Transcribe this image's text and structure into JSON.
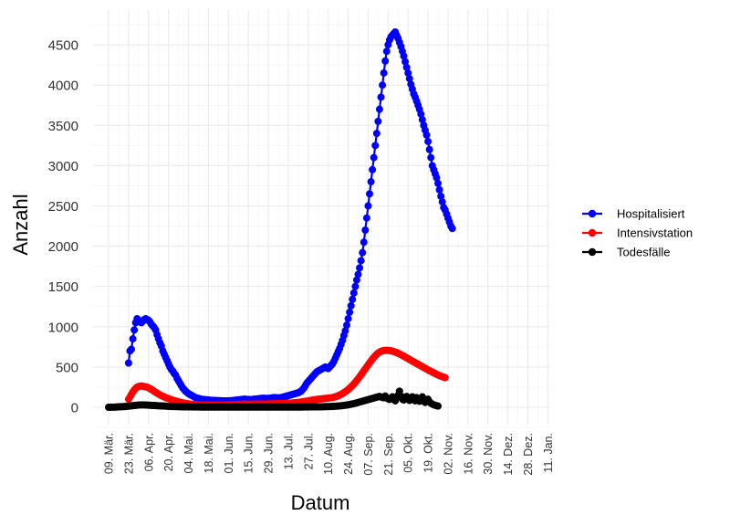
{
  "chart_data": {
    "type": "line",
    "xlabel": "Datum",
    "ylabel": "Anzahl",
    "ylim": [
      0,
      4700
    ],
    "x_tick_labels": [
      "09. Mär.",
      "23. Mär.",
      "06. Apr.",
      "20. Apr.",
      "04. Mai.",
      "18. Mai.",
      "01. Jun.",
      "15. Jun.",
      "29. Jun.",
      "13. Jul.",
      "27. Jul.",
      "10. Aug.",
      "24. Aug.",
      "07. Sep.",
      "21. Sep.",
      "05. Okt.",
      "19. Okt.",
      "02. Nov.",
      "16. Nov.",
      "30. Nov.",
      "14. Dez.",
      "28. Dez.",
      "11. Jan."
    ],
    "y_tick_labels": [
      "0",
      "500",
      "1000",
      "1500",
      "2000",
      "2500",
      "3000",
      "3500",
      "4000",
      "4500"
    ],
    "grid": true,
    "legend_position": "right",
    "series": [
      {
        "name": "Hospitalisiert",
        "color": "#0000ff",
        "start_day": 14,
        "values": [
          550,
          700,
          720,
          850,
          960,
          1050,
          1100,
          1080,
          1070,
          1050,
          1070,
          1090,
          1100,
          1090,
          1080,
          1060,
          1030,
          1010,
          990,
          960,
          900,
          850,
          800,
          760,
          700,
          660,
          620,
          580,
          540,
          500,
          470,
          450,
          420,
          400,
          360,
          330,
          300,
          270,
          240,
          220,
          200,
          185,
          170,
          160,
          150,
          140,
          130,
          120,
          115,
          110,
          105,
          100,
          98,
          96,
          94,
          92,
          90,
          88,
          87,
          86,
          85,
          84,
          83,
          82,
          82,
          81,
          81,
          80,
          80,
          80,
          80,
          81,
          82,
          84,
          86,
          88,
          90,
          92,
          94,
          96,
          98,
          100,
          100,
          98,
          96,
          95,
          96,
          98,
          100,
          102,
          104,
          106,
          108,
          110,
          112,
          112,
          111,
          110,
          110,
          112,
          115,
          118,
          120,
          120,
          118,
          116,
          118,
          120,
          125,
          130,
          135,
          140,
          145,
          150,
          155,
          160,
          165,
          170,
          175,
          180,
          190,
          200,
          220,
          240,
          270,
          300,
          320,
          340,
          360,
          380,
          400,
          420,
          440,
          450,
          460,
          470,
          480,
          490,
          500,
          490,
          480,
          500,
          520,
          540,
          570,
          610,
          650,
          690,
          730,
          780,
          830,
          890,
          950,
          1020,
          1100,
          1180,
          1260,
          1340,
          1420,
          1500,
          1580,
          1650,
          1730,
          1820,
          1920,
          2050,
          2200,
          2350,
          2500,
          2650,
          2800,
          2950,
          3100,
          3250,
          3400,
          3550,
          3700,
          3850,
          4000,
          4150,
          4300,
          4420,
          4500,
          4560,
          4600,
          4620,
          4640,
          4660,
          4620,
          4580,
          4530,
          4480,
          4420,
          4360,
          4290,
          4220,
          4150,
          4080,
          4010,
          3950,
          3890,
          3850,
          3800,
          3750,
          3700,
          3640,
          3570,
          3500,
          3440,
          3380,
          3300,
          3200,
          3100,
          3000,
          2950,
          2900,
          2850,
          2780,
          2700,
          2620,
          2550,
          2480,
          2450,
          2400,
          2350,
          2300,
          2250,
          2220
        ]
      },
      {
        "name": "Intensivstation",
        "color": "#ff0000",
        "start_day": 14,
        "values": [
          100,
          130,
          160,
          190,
          215,
          235,
          250,
          258,
          262,
          265,
          262,
          258,
          254,
          250,
          242,
          232,
          222,
          210,
          198,
          186,
          175,
          165,
          155,
          145,
          137,
          130,
          122,
          115,
          108,
          101,
          95,
          89,
          83,
          78,
          73,
          68,
          63,
          59,
          55,
          51,
          48,
          45,
          42,
          40,
          38,
          36,
          35,
          34,
          33,
          32,
          31,
          30,
          30,
          30,
          29,
          29,
          29,
          29,
          28,
          28,
          28,
          28,
          28,
          28,
          28,
          28,
          29,
          29,
          30,
          30,
          31,
          31,
          32,
          32,
          33,
          33,
          34,
          35,
          36,
          37,
          38,
          38,
          38,
          37,
          37,
          37,
          38,
          38,
          38,
          39,
          39,
          40,
          40,
          40,
          40,
          41,
          41,
          41,
          42,
          42,
          42,
          43,
          43,
          44,
          44,
          45,
          45,
          46,
          47,
          48,
          49,
          50,
          51,
          52,
          53,
          54,
          55,
          57,
          59,
          61,
          63,
          65,
          68,
          71,
          74,
          77,
          80,
          83,
          86,
          89,
          92,
          95,
          98,
          100,
          102,
          104,
          106,
          108,
          110,
          112,
          114,
          116,
          118,
          121,
          125,
          130,
          136,
          143,
          151,
          160,
          170,
          181,
          193,
          206,
          220,
          236,
          253,
          271,
          290,
          310,
          332,
          355,
          378,
          402,
          427,
          452,
          477,
          502,
          527,
          552,
          575,
          598,
          620,
          640,
          658,
          673,
          685,
          694,
          700,
          704,
          706,
          707,
          706,
          704,
          701,
          697,
          692,
          686,
          679,
          671,
          663,
          654,
          645,
          635,
          625,
          615,
          604,
          594,
          584,
          574,
          564,
          554,
          544,
          534,
          524,
          514,
          504,
          494,
          484,
          474,
          464,
          455,
          446,
          437,
          428,
          419,
          410,
          402,
          394,
          387,
          380,
          374,
          368
        ]
      },
      {
        "name": "Todesfälle",
        "color": "#000000",
        "start_day": 0,
        "values": [
          0,
          1,
          1,
          2,
          2,
          3,
          4,
          5,
          6,
          7,
          8,
          9,
          10,
          12,
          14,
          16,
          18,
          20,
          22,
          24,
          26,
          28,
          29,
          30,
          30,
          29,
          28,
          27,
          26,
          25,
          24,
          23,
          22,
          21,
          20,
          19,
          18,
          17,
          16,
          15,
          14,
          13,
          12,
          11,
          10,
          10,
          9,
          9,
          8,
          8,
          7,
          7,
          6,
          6,
          6,
          5,
          5,
          5,
          5,
          4,
          4,
          4,
          4,
          4,
          3,
          3,
          3,
          3,
          3,
          3,
          3,
          3,
          3,
          3,
          3,
          3,
          3,
          3,
          3,
          3,
          3,
          3,
          3,
          3,
          3,
          3,
          3,
          3,
          3,
          3,
          3,
          3,
          3,
          3,
          3,
          3,
          3,
          3,
          3,
          3,
          3,
          3,
          3,
          3,
          3,
          3,
          3,
          3,
          3,
          3,
          3,
          3,
          3,
          3,
          3,
          3,
          3,
          3,
          3,
          3,
          3,
          3,
          3,
          3,
          3,
          3,
          3,
          3,
          3,
          3,
          3,
          3,
          3,
          3,
          3,
          3,
          3,
          4,
          4,
          4,
          4,
          4,
          5,
          5,
          5,
          5,
          6,
          6,
          6,
          7,
          7,
          7,
          8,
          8,
          9,
          9,
          10,
          11,
          12,
          13,
          14,
          15,
          17,
          19,
          21,
          23,
          25,
          28,
          31,
          34,
          38,
          42,
          46,
          50,
          55,
          60,
          65,
          70,
          75,
          80,
          85,
          90,
          95,
          100,
          105,
          110,
          115,
          120,
          125,
          130,
          135,
          128,
          122,
          118,
          140,
          120,
          105,
          98,
          110,
          130,
          100,
          80,
          120,
          150,
          200,
          140,
          100,
          90,
          115,
          135,
          110,
          85,
          100,
          130,
          110,
          80,
          120,
          95,
          75,
          110,
          130,
          85,
          60,
          80,
          100,
          70,
          50,
          40,
          30,
          25,
          20,
          15
        ]
      }
    ]
  }
}
